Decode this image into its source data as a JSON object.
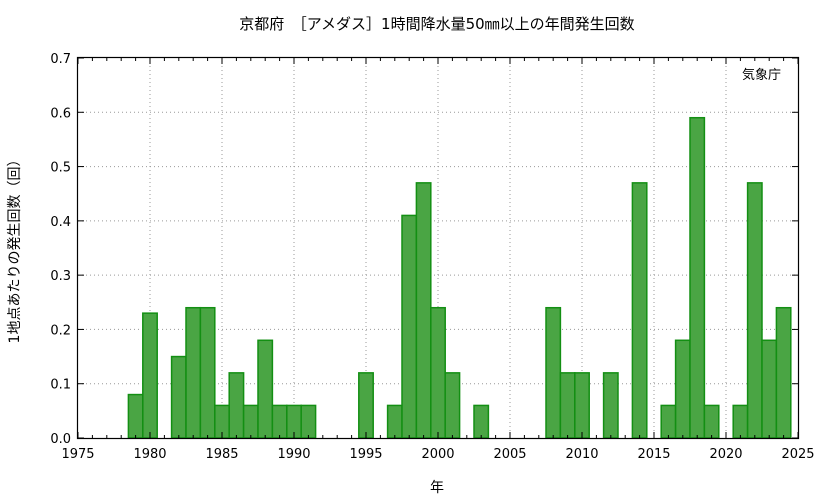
{
  "chart_data": {
    "type": "bar",
    "title": "京都府　［アメダス］1時間降水量50㎜以上の年間発生回数",
    "xlabel": "年",
    "ylabel": "1地点あたりの発生回数（回）",
    "source": "気象庁",
    "xlim": [
      1975,
      2025
    ],
    "ylim": [
      0,
      0.7
    ],
    "x_ticks": [
      "1975",
      "1980",
      "1985",
      "1990",
      "1995",
      "2000",
      "2005",
      "2010",
      "2015",
      "2020",
      "2025"
    ],
    "y_ticks": [
      "0.0",
      "0.1",
      "0.2",
      "0.3",
      "0.4",
      "0.5",
      "0.6",
      "0.7"
    ],
    "grid": true,
    "bar_color": "#4aa544",
    "bar_edge_color": "#138f13",
    "x": [
      1979,
      1980,
      1981,
      1982,
      1983,
      1984,
      1985,
      1986,
      1987,
      1988,
      1989,
      1990,
      1991,
      1992,
      1993,
      1994,
      1995,
      1996,
      1997,
      1998,
      1999,
      2000,
      2001,
      2002,
      2003,
      2004,
      2005,
      2006,
      2007,
      2008,
      2009,
      2010,
      2011,
      2012,
      2013,
      2014,
      2015,
      2016,
      2017,
      2018,
      2019,
      2020,
      2021,
      2022,
      2023,
      2024
    ],
    "values": [
      0.08,
      0.23,
      0,
      0.15,
      0.24,
      0.24,
      0.06,
      0.12,
      0.06,
      0.18,
      0.06,
      0.06,
      0.06,
      0,
      0,
      0,
      0.12,
      0,
      0.06,
      0.41,
      0.47,
      0.24,
      0.12,
      0,
      0.06,
      0,
      0,
      0,
      0,
      0.24,
      0.12,
      0.12,
      0,
      0.12,
      0,
      0.47,
      0,
      0.06,
      0.18,
      0.59,
      0.06,
      0,
      0.06,
      0.47,
      0.18,
      0.24
    ]
  }
}
